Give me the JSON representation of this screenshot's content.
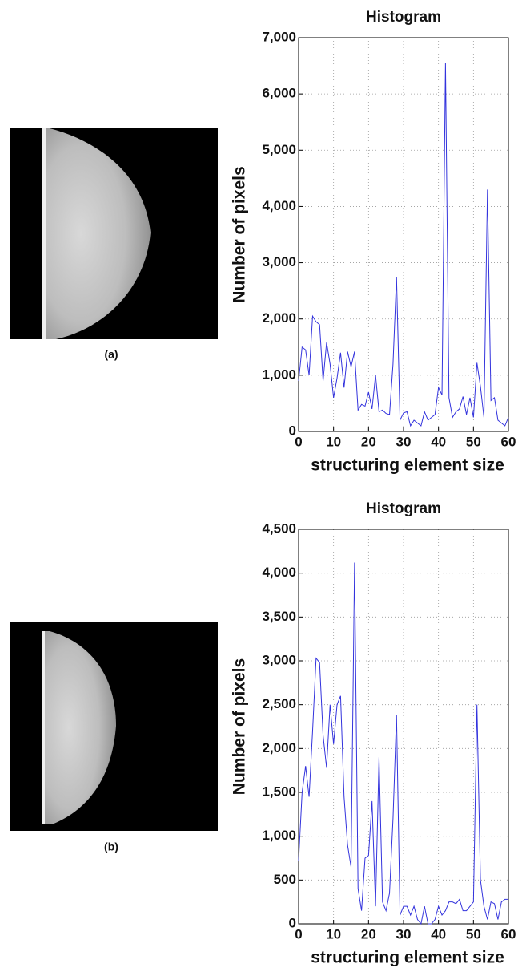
{
  "images": [
    {
      "caption": "(a)"
    },
    {
      "caption": "(b)"
    }
  ],
  "chart_data": [
    {
      "type": "line",
      "title": "Histogram",
      "x_label": "structuring element size",
      "y_label": "Number of pixels",
      "xlim": [
        0,
        60
      ],
      "xticks": [
        0,
        10,
        20,
        30,
        40,
        50,
        60
      ],
      "ylim": [
        0,
        7000
      ],
      "yticks": [
        0,
        {
          "value": 1000,
          "label": "1,000"
        },
        {
          "value": 2000,
          "label": "2,000"
        },
        {
          "value": 3000,
          "label": "3,000"
        },
        {
          "value": 4000,
          "label": "4,000"
        },
        {
          "value": 5000,
          "label": "5,000"
        },
        {
          "value": 6000,
          "label": "6,000"
        },
        {
          "value": 7000,
          "label": "7,000"
        }
      ],
      "grid": true,
      "x": [
        0,
        1,
        2,
        3,
        4,
        5,
        6,
        7,
        8,
        9,
        10,
        11,
        12,
        13,
        14,
        15,
        16,
        17,
        18,
        19,
        20,
        21,
        22,
        23,
        24,
        25,
        26,
        27,
        28,
        29,
        30,
        31,
        32,
        33,
        34,
        35,
        36,
        37,
        38,
        39,
        40,
        41,
        42,
        43,
        44,
        45,
        46,
        47,
        48,
        49,
        50,
        51,
        52,
        53,
        54,
        55,
        56,
        57,
        58,
        59,
        60
      ],
      "series": [
        {
          "color": "#3333dd",
          "values": [
            900,
            1500,
            1450,
            1000,
            2050,
            1950,
            1900,
            900,
            1580,
            1200,
            600,
            950,
            1400,
            780,
            1420,
            1150,
            1420,
            380,
            480,
            450,
            700,
            400,
            1000,
            350,
            380,
            320,
            300,
            1200,
            2750,
            200,
            330,
            350,
            100,
            200,
            150,
            100,
            350,
            200,
            250,
            300,
            780,
            650,
            6550,
            600,
            250,
            350,
            400,
            620,
            300,
            600,
            250,
            1220,
            800,
            250,
            4300,
            550,
            600,
            200,
            150,
            100,
            250
          ]
        }
      ]
    },
    {
      "type": "line",
      "title": "Histogram",
      "x_label": "structuring element size",
      "y_label": "Number of pixels",
      "xlim": [
        0,
        60
      ],
      "xticks": [
        0,
        10,
        20,
        30,
        40,
        50,
        60
      ],
      "ylim": [
        0,
        4500
      ],
      "yticks": [
        0,
        500,
        {
          "value": 1000,
          "label": "1,000"
        },
        {
          "value": 1500,
          "label": "1,500"
        },
        {
          "value": 2000,
          "label": "2,000"
        },
        {
          "value": 2500,
          "label": "2,500"
        },
        {
          "value": 3000,
          "label": "3,000"
        },
        {
          "value": 3500,
          "label": "3,500"
        },
        {
          "value": 4000,
          "label": "4,000"
        },
        {
          "value": 4500,
          "label": "4,500"
        }
      ],
      "grid": true,
      "x": [
        0,
        1,
        2,
        3,
        4,
        5,
        6,
        7,
        8,
        9,
        10,
        11,
        12,
        13,
        14,
        15,
        16,
        17,
        18,
        19,
        20,
        21,
        22,
        23,
        24,
        25,
        26,
        27,
        28,
        29,
        30,
        31,
        32,
        33,
        34,
        35,
        36,
        37,
        38,
        39,
        40,
        41,
        42,
        43,
        44,
        45,
        46,
        47,
        48,
        49,
        50,
        51,
        52,
        53,
        54,
        55,
        56,
        57,
        58,
        59,
        60
      ],
      "series": [
        {
          "color": "#3333dd",
          "values": [
            720,
            1500,
            1800,
            1450,
            2200,
            3030,
            2980,
            2150,
            1780,
            2500,
            2050,
            2500,
            2600,
            1450,
            900,
            650,
            4120,
            400,
            150,
            750,
            780,
            1400,
            200,
            1900,
            250,
            150,
            350,
            1200,
            2380,
            100,
            200,
            200,
            100,
            200,
            50,
            0,
            200,
            0,
            0,
            50,
            200,
            100,
            150,
            250,
            250,
            230,
            280,
            150,
            150,
            200,
            250,
            2500,
            500,
            200,
            50,
            250,
            230,
            50,
            250,
            280,
            280
          ]
        }
      ]
    }
  ]
}
